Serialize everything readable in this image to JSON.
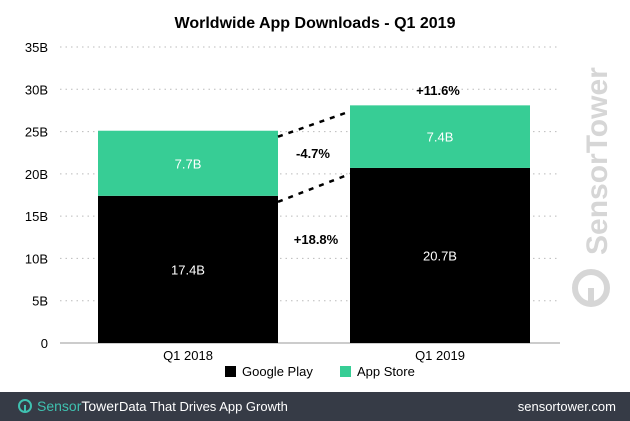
{
  "chart_data": {
    "type": "bar",
    "stacked": true,
    "title": "Worldwide App Downloads - Q1 2019",
    "categories": [
      "Q1 2018",
      "Q1 2019"
    ],
    "series": [
      {
        "name": "Google Play",
        "values": [
          17.4,
          20.7
        ],
        "labels": [
          "17.4B",
          "20.7B"
        ],
        "color": "#000000"
      },
      {
        "name": "App Store",
        "values": [
          7.7,
          7.4
        ],
        "labels": [
          "7.7B",
          "7.4B"
        ],
        "color": "#37cd95"
      }
    ],
    "annotations": {
      "google_play_change": "+18.8%",
      "app_store_change": "-4.7%",
      "total_change": "+11.6%"
    },
    "ylim": [
      0,
      35
    ],
    "yticks": [
      0,
      5,
      10,
      15,
      20,
      25,
      30,
      35
    ],
    "ytick_labels": [
      "0",
      "5B",
      "10B",
      "15B",
      "20B",
      "25B",
      "30B",
      "35B"
    ],
    "grid": "dotted-horizontal",
    "legend_placement": "bottom-center",
    "xlabel": "",
    "ylabel": ""
  },
  "watermark": "SensorTower",
  "footer": {
    "brand_part1": "Sensor",
    "brand_part2": "Tower",
    "tagline": "Data That Drives App Growth",
    "url": "sensortower.com"
  }
}
